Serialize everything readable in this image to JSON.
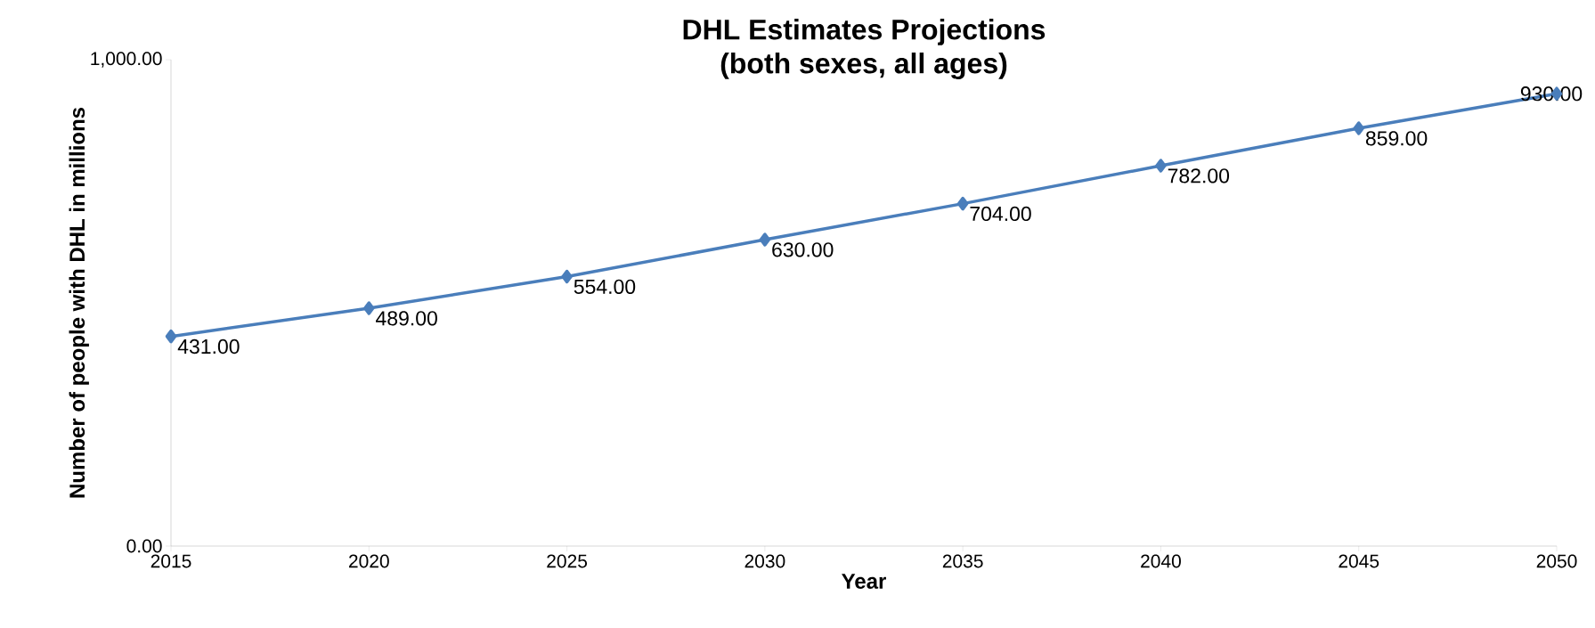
{
  "chart_data": {
    "type": "line",
    "title": "DHL Estimates Projections",
    "subtitle": "(both sexes, all ages)",
    "xlabel": "Year",
    "ylabel": "Number of people with DHL in millions",
    "x": [
      2015,
      2020,
      2025,
      2030,
      2035,
      2040,
      2045,
      2050
    ],
    "series": [
      {
        "color": "#4a7ebb",
        "values": [
          431,
          489,
          554,
          630,
          704,
          782,
          859,
          930
        ],
        "value_labels": [
          "431.00",
          "489.00",
          "554.00",
          "630.00",
          "704.00",
          "782.00",
          "859.00",
          "930.00"
        ]
      }
    ],
    "xlim": [
      2015,
      2050
    ],
    "xticks": [
      2015,
      2020,
      2025,
      2030,
      2035,
      2040,
      2045,
      2050
    ],
    "ylim": [
      0,
      1000
    ],
    "yticks": [
      {
        "value": 0,
        "label": "0.00"
      },
      {
        "value": 1000,
        "label": "1,000.00"
      }
    ],
    "marker": "diamond",
    "line_style": "solid"
  }
}
